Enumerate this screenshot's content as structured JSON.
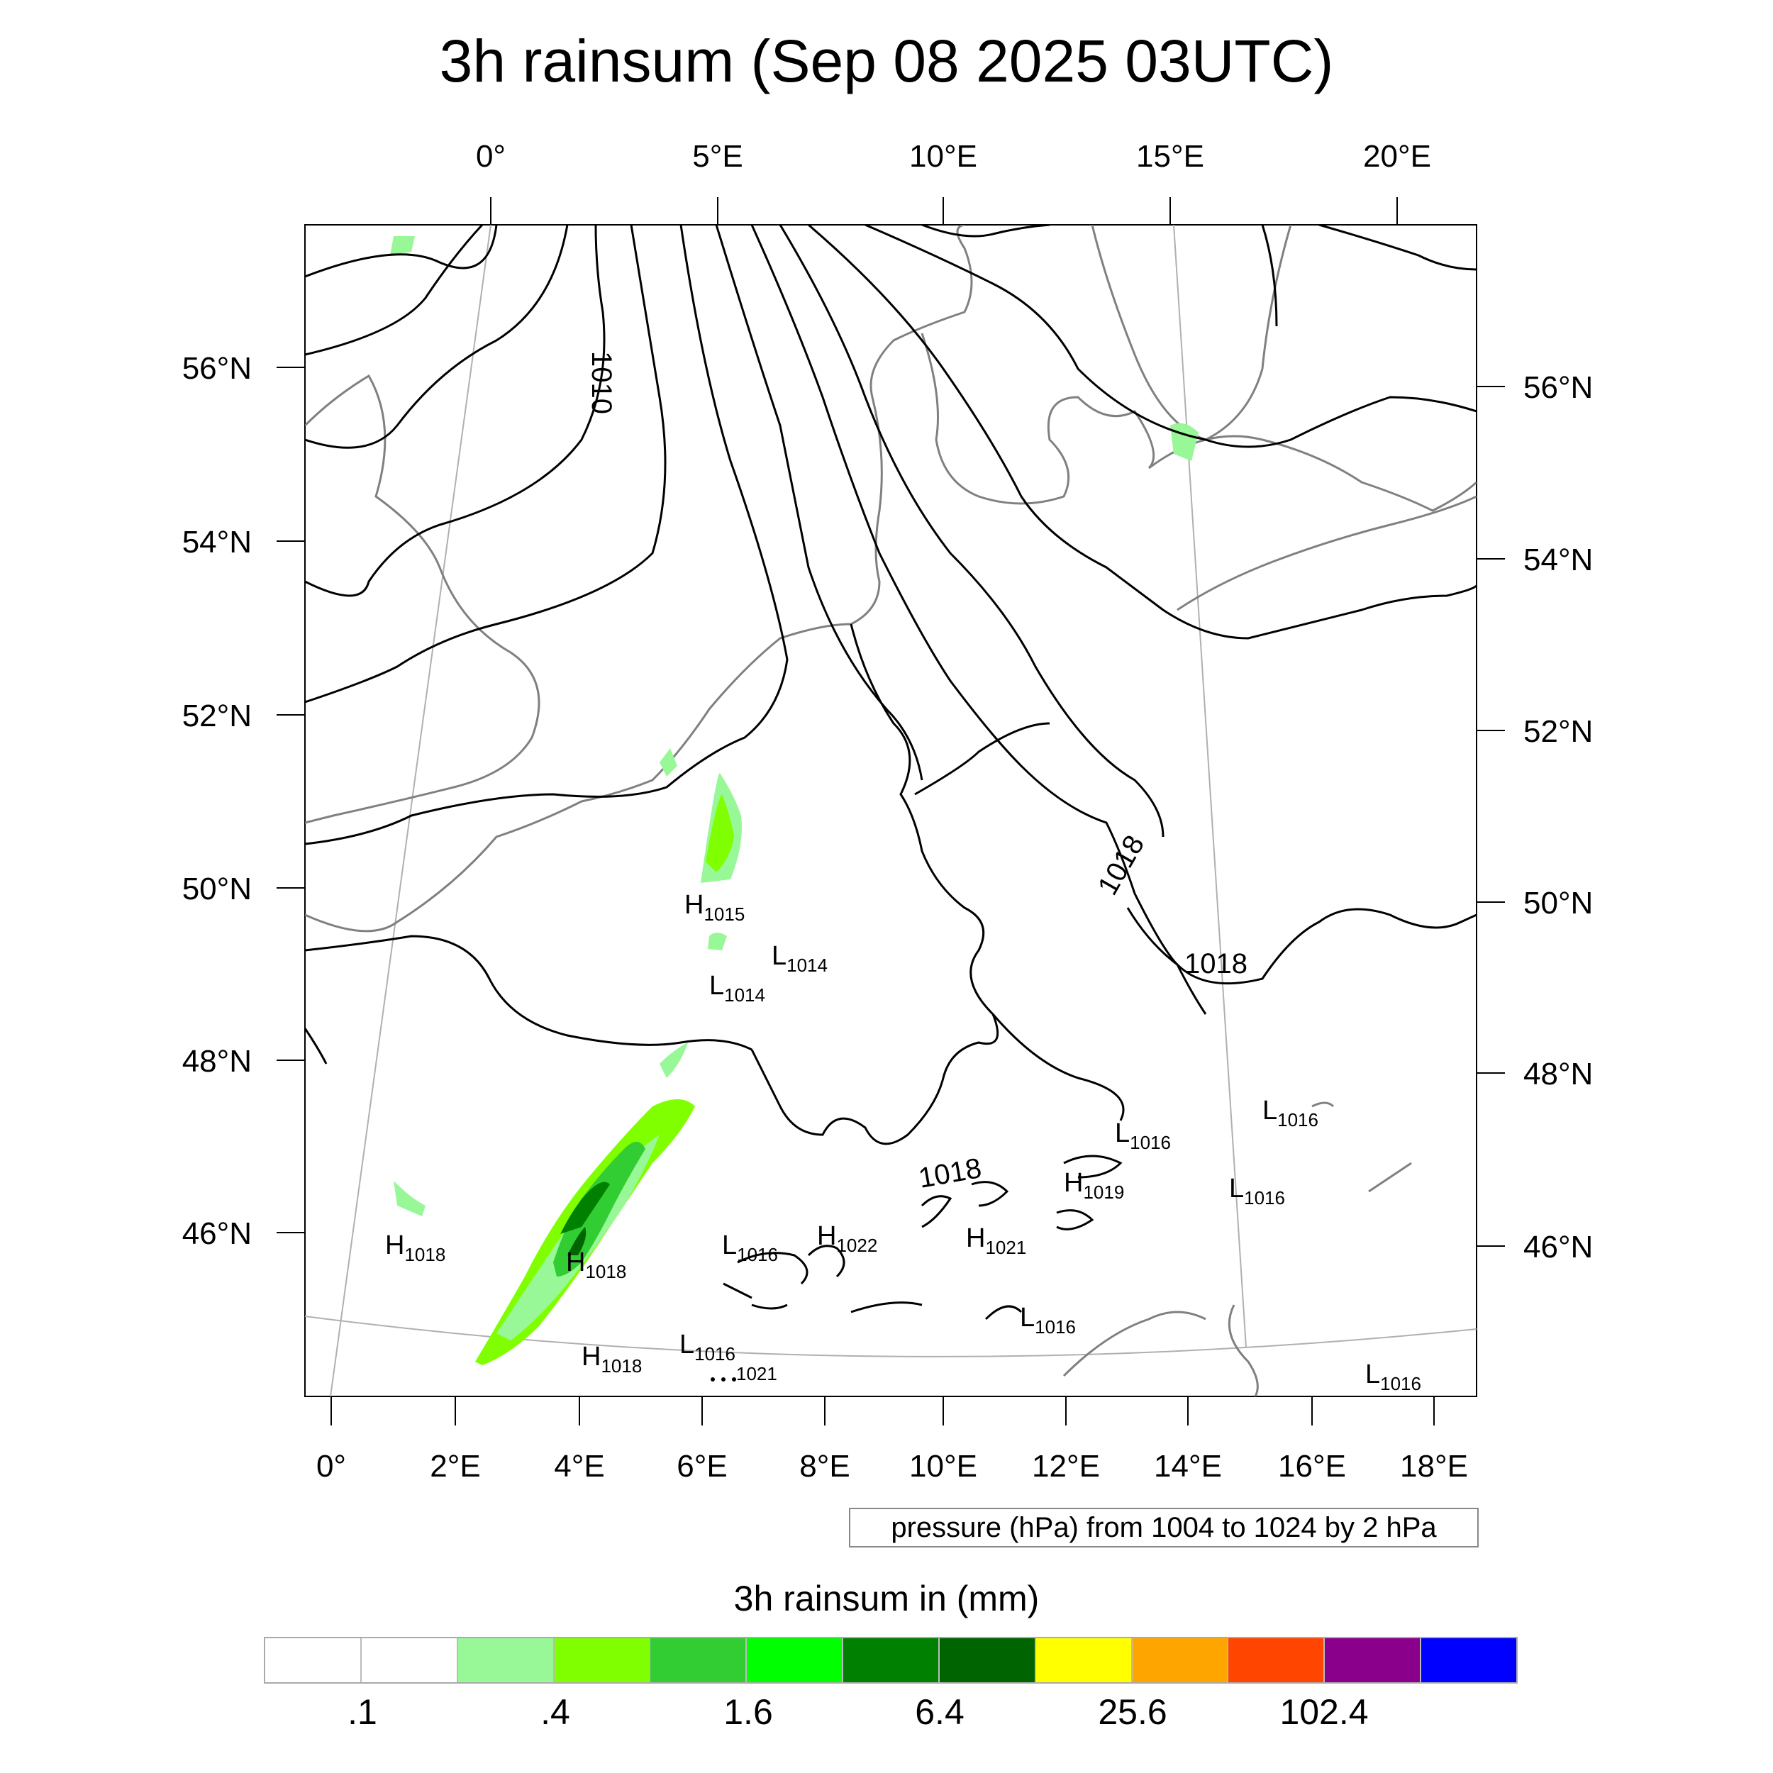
{
  "title": "3h rainsum (Sep 08 2025 03UTC)",
  "top_lon_labels": [
    "0°",
    "5°E",
    "10°E",
    "15°E",
    "20°E"
  ],
  "bottom_lon_labels": [
    "0°",
    "2°E",
    "4°E",
    "6°E",
    "8°E",
    "10°E",
    "12°E",
    "14°E",
    "16°E",
    "18°E"
  ],
  "left_lat_labels": [
    "56°N",
    "54°N",
    "52°N",
    "50°N",
    "48°N",
    "46°N"
  ],
  "right_lat_labels": [
    "56°N",
    "54°N",
    "52°N",
    "50°N",
    "48°N",
    "46°N"
  ],
  "pressure_note": "pressure (hPa) from 1004 to 1024 by 2 hPa",
  "isobar_labels": [
    "1010",
    "1018",
    "1018",
    "1018"
  ],
  "pressure_centers": [
    {
      "type": "H",
      "value": "1015"
    },
    {
      "type": "L",
      "value": "1014"
    },
    {
      "type": "L",
      "value": "1014"
    },
    {
      "type": "H",
      "value": "1018"
    },
    {
      "type": "H",
      "value": "1018"
    },
    {
      "type": "H",
      "value": "1018"
    },
    {
      "type": "L",
      "value": "1016"
    },
    {
      "type": "L",
      "value": "1016"
    },
    {
      "type": "H",
      "value": "1022"
    },
    {
      "type": "H",
      "value": "1021"
    },
    {
      "type": "H",
      "value": "1019"
    },
    {
      "type": "L",
      "value": "1016"
    },
    {
      "type": "L",
      "value": "1016"
    },
    {
      "type": "L",
      "value": "1016"
    },
    {
      "type": "L",
      "value": "1016"
    },
    {
      "type": "L",
      "value": "1016"
    }
  ],
  "fragment_label": "1021",
  "colorbar": {
    "title": "3h rainsum in (mm)",
    "colors": [
      "#ffffff",
      "#ffffff",
      "#98f898",
      "#80ff00",
      "#32cd32",
      "#00ff00",
      "#008000",
      "#006400",
      "#ffff00",
      "#ffa500",
      "#ff4500",
      "#8b008b",
      "#0000ff"
    ],
    "labels": [
      ".1",
      ".4",
      "1.6",
      "6.4",
      "25.6",
      "102.4"
    ]
  }
}
